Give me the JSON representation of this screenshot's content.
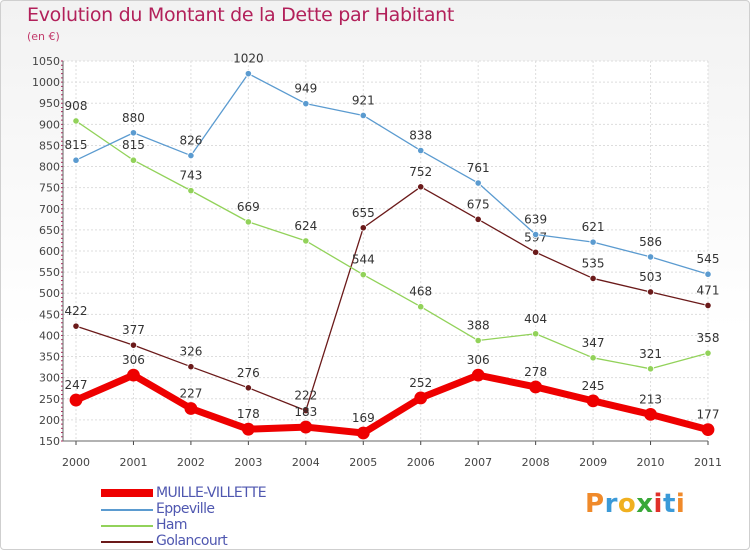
{
  "header": {
    "title": "Evolution du Montant de la Dette par Habitant",
    "subtitle": "(en €)"
  },
  "logo": {
    "text": "Proxiti",
    "letter_colors": [
      "#f08a2a",
      "#3b9ad8",
      "#f0b020",
      "#38a838",
      "#e0302a",
      "#3b9ad8",
      "#f08a2a"
    ]
  },
  "chart_data": {
    "type": "line",
    "title": "Evolution du Montant de la Dette par Habitant",
    "subtitle": "(en €)",
    "xlabel": "",
    "ylabel": "",
    "x": [
      "2000",
      "2001",
      "2002",
      "2003",
      "2004",
      "2005",
      "2006",
      "2007",
      "2008",
      "2009",
      "2010",
      "2011"
    ],
    "ylim": [
      150,
      1050
    ],
    "yticks": [
      150,
      200,
      250,
      300,
      350,
      400,
      450,
      500,
      550,
      600,
      650,
      700,
      750,
      800,
      850,
      900,
      950,
      1000,
      1050
    ],
    "grid": true,
    "legend_position": "bottom-left",
    "series": [
      {
        "name": "Golancourt",
        "color": "#6b1a1a",
        "values": [
          422,
          377,
          326,
          276,
          222,
          655,
          752,
          675,
          597,
          535,
          503,
          471
        ]
      },
      {
        "name": "Ham",
        "color": "#92d25a",
        "values": [
          908,
          815,
          743,
          669,
          624,
          544,
          468,
          388,
          404,
          347,
          321,
          358
        ]
      },
      {
        "name": "Eppeville",
        "color": "#5b9bd0",
        "values": [
          815,
          880,
          826,
          1020,
          949,
          921,
          838,
          761,
          639,
          621,
          586,
          545
        ]
      },
      {
        "name": "MUILLE-VILLETTE",
        "color": "#ee0000",
        "values": [
          247,
          306,
          227,
          178,
          183,
          169,
          252,
          306,
          278,
          245,
          213,
          177
        ]
      }
    ],
    "legend": [
      {
        "name": "MUILLE-VILLETTE",
        "color": "#ee0000"
      },
      {
        "name": "Eppeville",
        "color": "#5b9bd0"
      },
      {
        "name": "Ham",
        "color": "#92d25a"
      },
      {
        "name": "Golancourt",
        "color": "#6b1a1a"
      }
    ]
  }
}
